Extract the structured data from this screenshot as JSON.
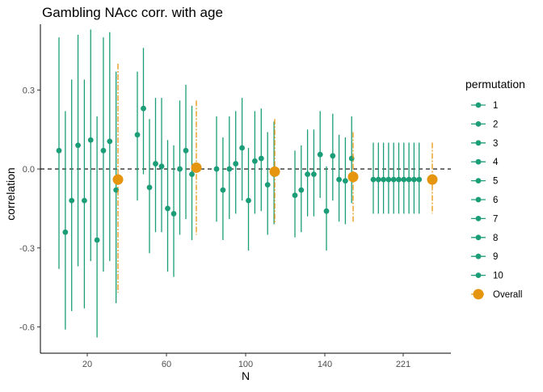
{
  "chart_data": {
    "type": "scatter",
    "title": "Gambling NAcc corr. with age",
    "xlabel": "N",
    "ylabel": "correlation",
    "x_ticks": [
      "20",
      "60",
      "100",
      "140",
      "221"
    ],
    "y_ticks": [
      -0.6,
      -0.3,
      0.0,
      0.3
    ],
    "y_tick_labels": [
      "-0.6",
      "-0.3",
      "0.0",
      "0.3"
    ],
    "ylim": [
      -0.7,
      0.55
    ],
    "reference_line": 0,
    "grid": false,
    "legend_title": "permutation",
    "legend_position": "right",
    "colors": {
      "permutation": "#1b9e77",
      "overall": "#e6950e",
      "ref_line": "#000000",
      "axis": "#000000"
    },
    "groups": [
      {
        "N": "20",
        "permutations": [
          {
            "name": "1",
            "estimate": 0.07,
            "lower": -0.38,
            "upper": 0.5
          },
          {
            "name": "2",
            "estimate": -0.24,
            "lower": -0.61,
            "upper": 0.22
          },
          {
            "name": "3",
            "estimate": -0.12,
            "lower": -0.54,
            "upper": 0.34
          },
          {
            "name": "4",
            "estimate": 0.09,
            "lower": -0.37,
            "upper": 0.51
          },
          {
            "name": "5",
            "estimate": -0.12,
            "lower": -0.53,
            "upper": 0.34
          },
          {
            "name": "6",
            "estimate": 0.11,
            "lower": -0.35,
            "upper": 0.53
          },
          {
            "name": "7",
            "estimate": -0.27,
            "lower": -0.64,
            "upper": 0.2
          },
          {
            "name": "8",
            "estimate": 0.07,
            "lower": -0.39,
            "upper": 0.5
          },
          {
            "name": "9",
            "estimate": 0.105,
            "lower": -0.35,
            "upper": 0.52
          },
          {
            "name": "10",
            "estimate": -0.08,
            "lower": -0.51,
            "upper": 0.37
          }
        ],
        "overall": {
          "estimate": -0.04,
          "lower": -0.47,
          "upper": 0.4
        }
      },
      {
        "N": "60",
        "permutations": [
          {
            "name": "1",
            "estimate": 0.13,
            "lower": -0.12,
            "upper": 0.37
          },
          {
            "name": "2",
            "estimate": 0.23,
            "lower": -0.02,
            "upper": 0.46
          },
          {
            "name": "3",
            "estimate": -0.07,
            "lower": -0.32,
            "upper": 0.19
          },
          {
            "name": "4",
            "estimate": 0.02,
            "lower": -0.24,
            "upper": 0.27
          },
          {
            "name": "5",
            "estimate": 0.01,
            "lower": -0.24,
            "upper": 0.27
          },
          {
            "name": "6",
            "estimate": -0.15,
            "lower": -0.39,
            "upper": 0.11
          },
          {
            "name": "7",
            "estimate": -0.17,
            "lower": -0.41,
            "upper": 0.09
          },
          {
            "name": "8",
            "estimate": 0.0,
            "lower": -0.25,
            "upper": 0.26
          },
          {
            "name": "9",
            "estimate": 0.07,
            "lower": -0.19,
            "upper": 0.32
          },
          {
            "name": "10",
            "estimate": -0.02,
            "lower": -0.27,
            "upper": 0.24
          }
        ],
        "overall": {
          "estimate": 0.005,
          "lower": -0.25,
          "upper": 0.26
        }
      },
      {
        "N": "100",
        "permutations": [
          {
            "name": "1",
            "estimate": 0.0,
            "lower": -0.2,
            "upper": 0.2
          },
          {
            "name": "2",
            "estimate": -0.08,
            "lower": -0.27,
            "upper": 0.12
          },
          {
            "name": "3",
            "estimate": 0.0,
            "lower": -0.19,
            "upper": 0.2
          },
          {
            "name": "4",
            "estimate": 0.02,
            "lower": -0.17,
            "upper": 0.22
          },
          {
            "name": "5",
            "estimate": 0.08,
            "lower": -0.12,
            "upper": 0.27
          },
          {
            "name": "6",
            "estimate": -0.12,
            "lower": -0.31,
            "upper": 0.08
          },
          {
            "name": "7",
            "estimate": 0.03,
            "lower": -0.17,
            "upper": 0.22
          },
          {
            "name": "8",
            "estimate": 0.04,
            "lower": -0.16,
            "upper": 0.23
          },
          {
            "name": "9",
            "estimate": -0.06,
            "lower": -0.25,
            "upper": 0.14
          },
          {
            "name": "10",
            "estimate": -0.02,
            "lower": -0.21,
            "upper": 0.18
          }
        ],
        "overall": {
          "estimate": -0.01,
          "lower": -0.21,
          "upper": 0.19
        }
      },
      {
        "N": "140",
        "permutations": [
          {
            "name": "1",
            "estimate": -0.1,
            "lower": -0.26,
            "upper": 0.07
          },
          {
            "name": "2",
            "estimate": -0.08,
            "lower": -0.24,
            "upper": 0.09
          },
          {
            "name": "3",
            "estimate": -0.02,
            "lower": -0.18,
            "upper": 0.15
          },
          {
            "name": "4",
            "estimate": -0.02,
            "lower": -0.18,
            "upper": 0.15
          },
          {
            "name": "5",
            "estimate": 0.055,
            "lower": -0.11,
            "upper": 0.22
          },
          {
            "name": "6",
            "estimate": -0.16,
            "lower": -0.31,
            "upper": 0.01
          },
          {
            "name": "7",
            "estimate": 0.05,
            "lower": -0.12,
            "upper": 0.21
          },
          {
            "name": "8",
            "estimate": -0.04,
            "lower": -0.2,
            "upper": 0.13
          },
          {
            "name": "9",
            "estimate": -0.045,
            "lower": -0.21,
            "upper": 0.12
          },
          {
            "name": "10",
            "estimate": 0.04,
            "lower": -0.13,
            "upper": 0.2
          }
        ],
        "overall": {
          "estimate": -0.03,
          "lower": -0.2,
          "upper": 0.14
        }
      },
      {
        "N": "221",
        "permutations": [
          {
            "name": "1",
            "estimate": -0.04,
            "lower": -0.17,
            "upper": 0.1
          },
          {
            "name": "2",
            "estimate": -0.04,
            "lower": -0.17,
            "upper": 0.1
          },
          {
            "name": "3",
            "estimate": -0.04,
            "lower": -0.17,
            "upper": 0.1
          },
          {
            "name": "4",
            "estimate": -0.04,
            "lower": -0.17,
            "upper": 0.1
          },
          {
            "name": "5",
            "estimate": -0.04,
            "lower": -0.17,
            "upper": 0.1
          },
          {
            "name": "6",
            "estimate": -0.04,
            "lower": -0.17,
            "upper": 0.1
          },
          {
            "name": "7",
            "estimate": -0.04,
            "lower": -0.17,
            "upper": 0.1
          },
          {
            "name": "8",
            "estimate": -0.04,
            "lower": -0.17,
            "upper": 0.1
          },
          {
            "name": "9",
            "estimate": -0.04,
            "lower": -0.17,
            "upper": 0.1
          },
          {
            "name": "10",
            "estimate": -0.04,
            "lower": -0.17,
            "upper": 0.1
          }
        ],
        "overall": {
          "estimate": -0.04,
          "lower": -0.17,
          "upper": 0.1
        }
      }
    ],
    "legend": [
      {
        "label": "1",
        "kind": "permutation"
      },
      {
        "label": "2",
        "kind": "permutation"
      },
      {
        "label": "3",
        "kind": "permutation"
      },
      {
        "label": "4",
        "kind": "permutation"
      },
      {
        "label": "5",
        "kind": "permutation"
      },
      {
        "label": "6",
        "kind": "permutation"
      },
      {
        "label": "7",
        "kind": "permutation"
      },
      {
        "label": "8",
        "kind": "permutation"
      },
      {
        "label": "9",
        "kind": "permutation"
      },
      {
        "label": "10",
        "kind": "permutation"
      },
      {
        "label": "Overall",
        "kind": "overall"
      }
    ]
  }
}
